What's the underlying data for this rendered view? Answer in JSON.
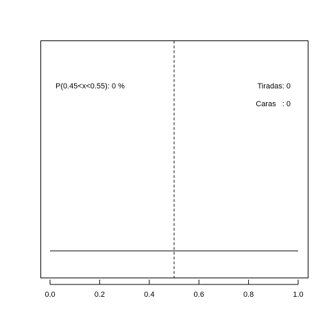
{
  "chart_data": {
    "type": "line",
    "title": "",
    "xlabel": "",
    "ylabel": "",
    "xlim": [
      0.0,
      1.0
    ],
    "xticks": [
      "0.0",
      "0.2",
      "0.4",
      "0.6",
      "0.8",
      "1.0"
    ],
    "grid": false,
    "reference_line": {
      "x": 0.5,
      "style": "dashed"
    },
    "series": [
      {
        "x": [
          0.0,
          1.0
        ],
        "y": [
          0,
          0
        ]
      }
    ],
    "annotations": {
      "probability": "P(0.45<x<0.55): 0 %",
      "tiradas": "Tiradas: 0",
      "caras": "Caras   : 0"
    }
  }
}
